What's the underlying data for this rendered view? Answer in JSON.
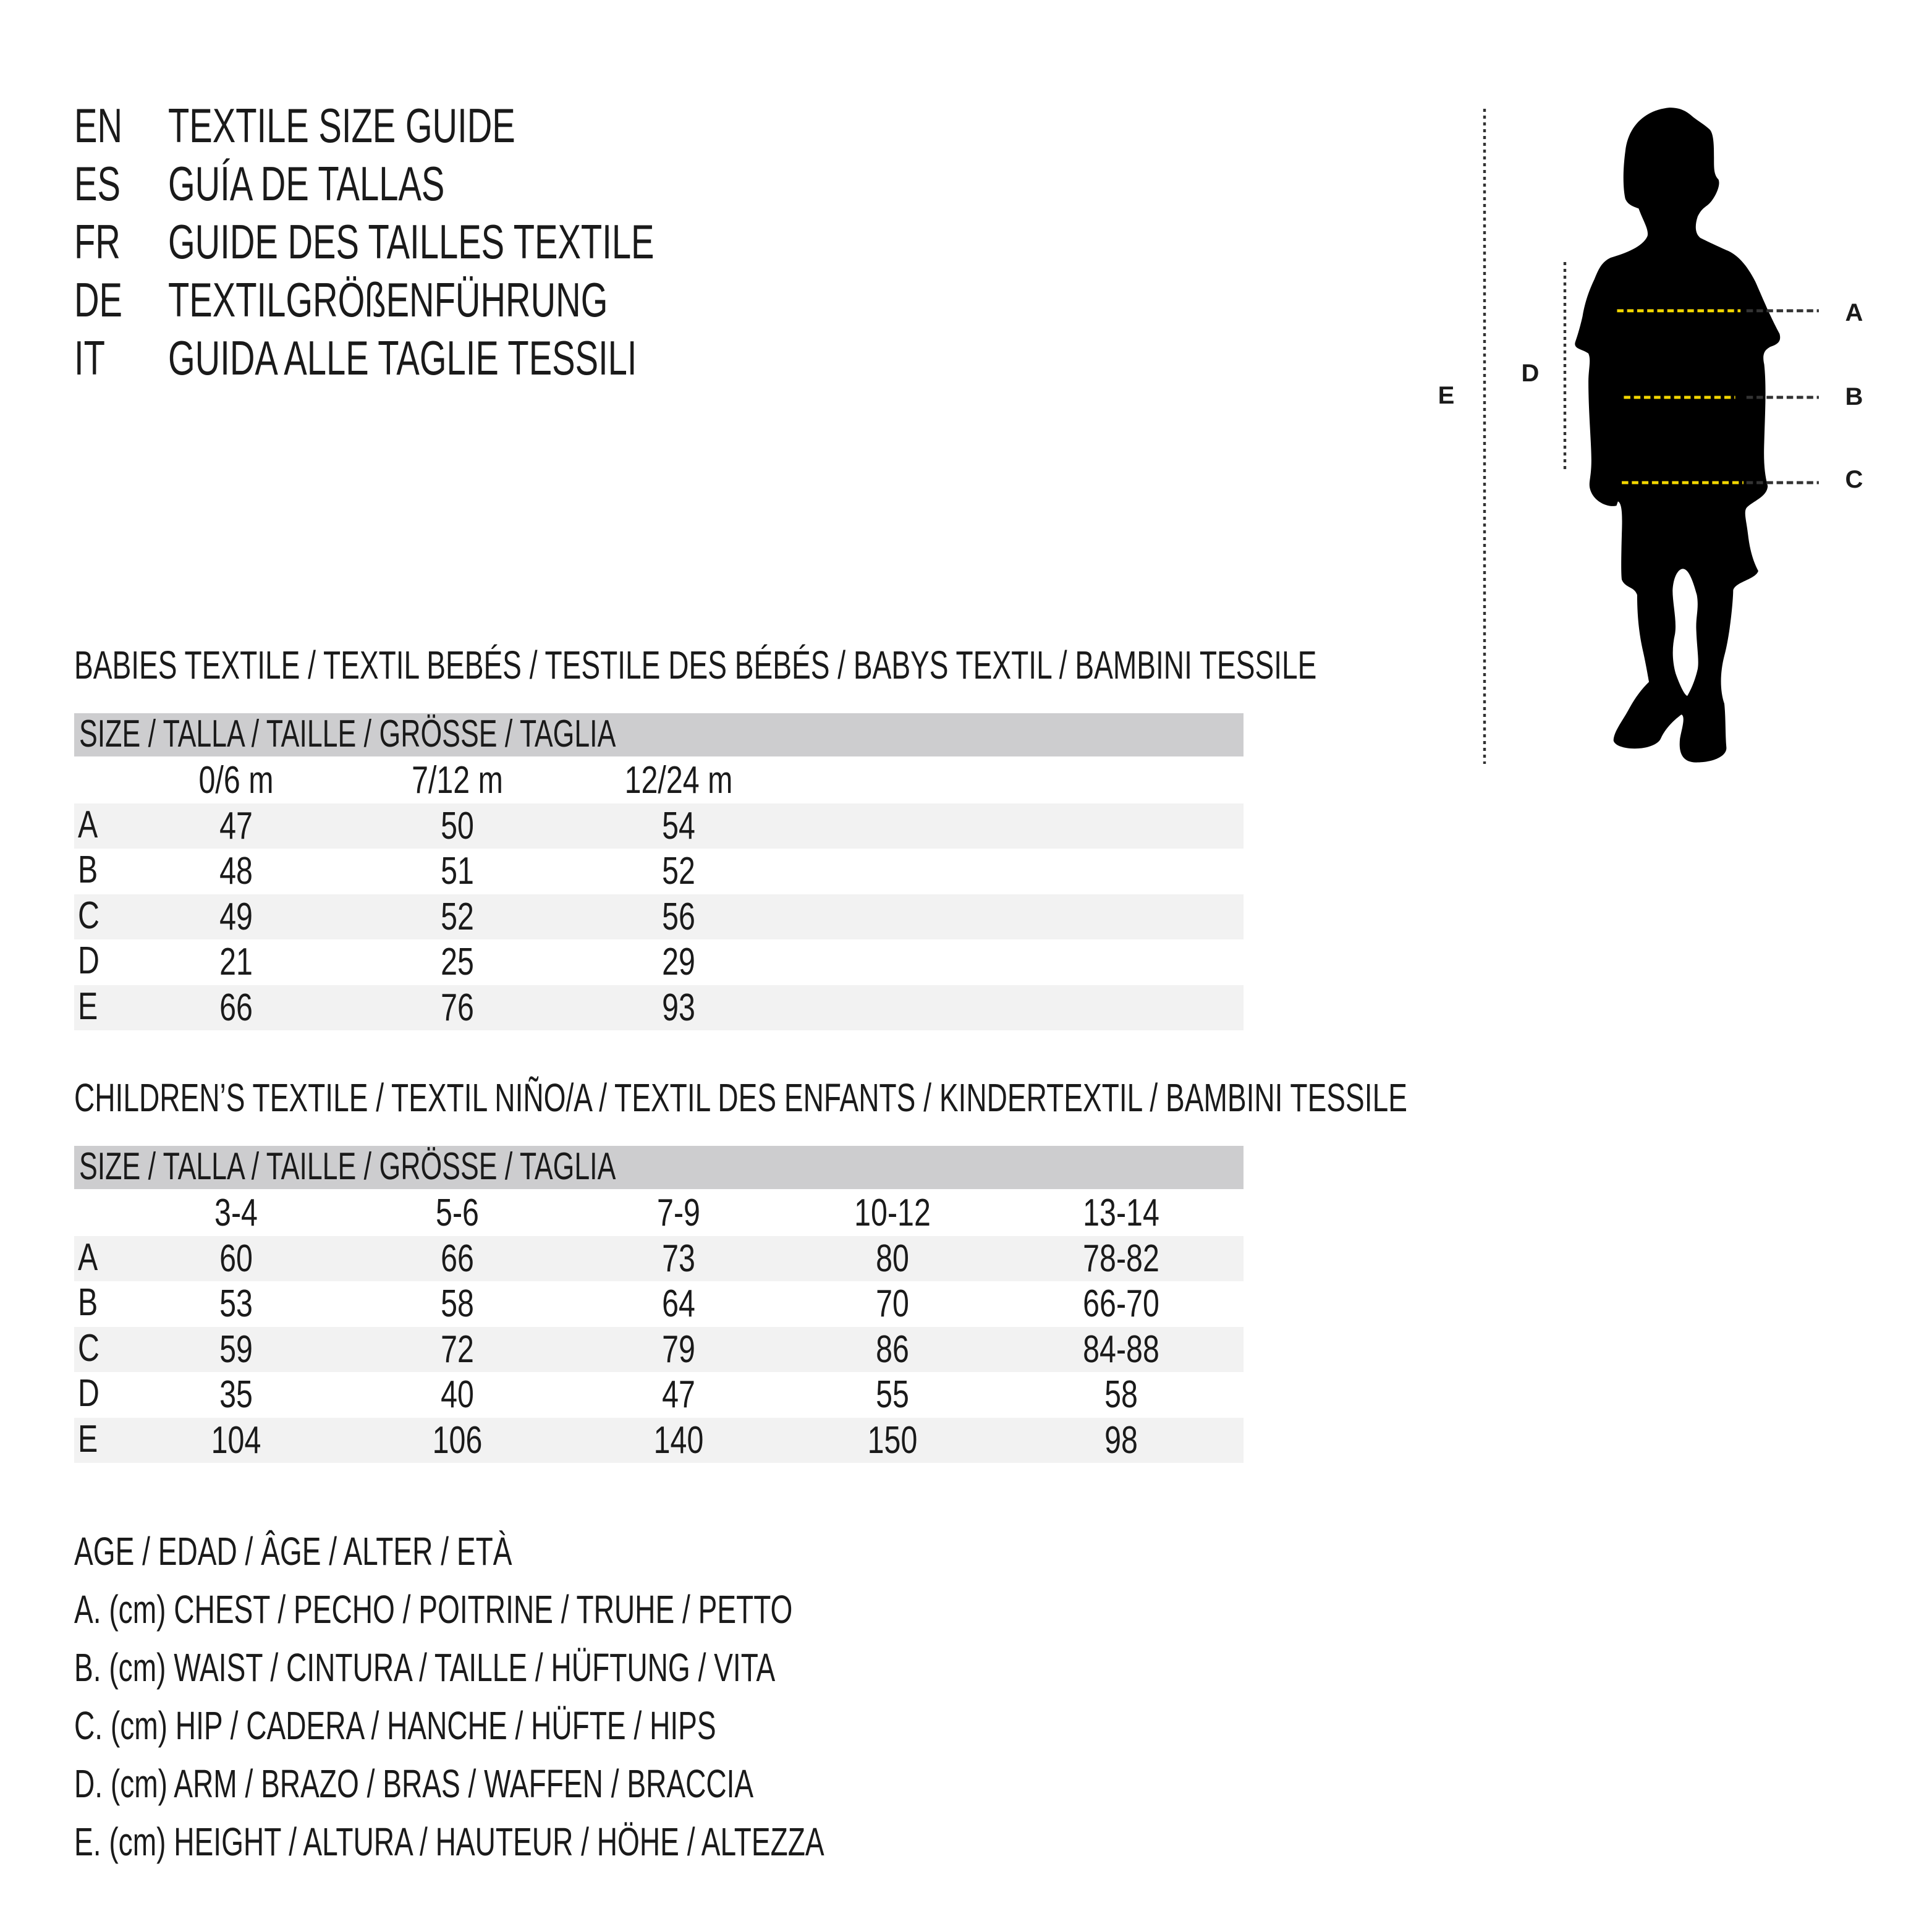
{
  "titles": [
    {
      "code": "EN",
      "text": "TEXTILE SIZE GUIDE"
    },
    {
      "code": "ES",
      "text": "GUÍA DE TALLAS"
    },
    {
      "code": "FR",
      "text": "GUIDE DES TAILLES TEXTILE"
    },
    {
      "code": "DE",
      "text": "TEXTILGRÖßENFÜHRUNG"
    },
    {
      "code": "IT",
      "text": "GUIDA ALLE TAGLIE TESSILI"
    }
  ],
  "babies": {
    "heading": "BABIES TEXTILE / TEXTIL BEBÉS / TESTILE DES BÉBÉS / BABYS TEXTIL / BAMBINI TESSILE",
    "size_label": "SIZE / TALLA / TAILLE / GRÖSSE / TAGLIA",
    "columns": [
      "0/6 m",
      "7/12 m",
      "12/24 m"
    ],
    "rows": [
      {
        "label": "A",
        "values": [
          "47",
          "50",
          "54"
        ]
      },
      {
        "label": "B",
        "values": [
          "48",
          "51",
          "52"
        ]
      },
      {
        "label": "C",
        "values": [
          "49",
          "52",
          "56"
        ]
      },
      {
        "label": "D",
        "values": [
          "21",
          "25",
          "29"
        ]
      },
      {
        "label": "E",
        "values": [
          "66",
          "76",
          "93"
        ]
      }
    ]
  },
  "children": {
    "heading": "CHILDREN’S TEXTILE / TEXTIL NIÑO/A / TEXTIL DES ENFANTS / KINDERTEXTIL / BAMBINI TESSILE",
    "size_label": "SIZE / TALLA / TAILLE / GRÖSSE / TAGLIA",
    "columns": [
      "3-4",
      "5-6",
      "7-9",
      "10-12",
      "13-14"
    ],
    "rows": [
      {
        "label": "A",
        "values": [
          "60",
          "66",
          "73",
          "80",
          "78-82"
        ]
      },
      {
        "label": "B",
        "values": [
          "53",
          "58",
          "64",
          "70",
          "66-70"
        ]
      },
      {
        "label": "C",
        "values": [
          "59",
          "72",
          "79",
          "86",
          "84-88"
        ]
      },
      {
        "label": "D",
        "values": [
          "35",
          "40",
          "47",
          "55",
          "58"
        ]
      },
      {
        "label": "E",
        "values": [
          "104",
          "106",
          "140",
          "150",
          "98"
        ]
      }
    ]
  },
  "legend": [
    "AGE / EDAD / ÂGE / ALTER / ETÀ",
    "A. (cm) CHEST / PECHO / POITRINE / TRUHE / PETTO",
    "B. (cm) WAIST / CINTURA / TAILLE / HÜFTUNG / VITA",
    "C. (cm) HIP / CADERA / HANCHE / HÜFTE / HIPS",
    "D. (cm) ARM / BRAZO / BRAS / WAFFEN / BRACCIA",
    "E. (cm) HEIGHT / ALTURA / HAUTEUR / HÖHE / ALTEZZA"
  ],
  "figure": {
    "labels": {
      "A": "A",
      "B": "B",
      "C": "C",
      "D": "D",
      "E": "E"
    },
    "colors": {
      "measure_line": "#f2d600",
      "guide_line": "#333333",
      "silhouette": "#000000",
      "header_bar": "#cdcdcf",
      "row_alt": "#f2f2f2"
    }
  }
}
